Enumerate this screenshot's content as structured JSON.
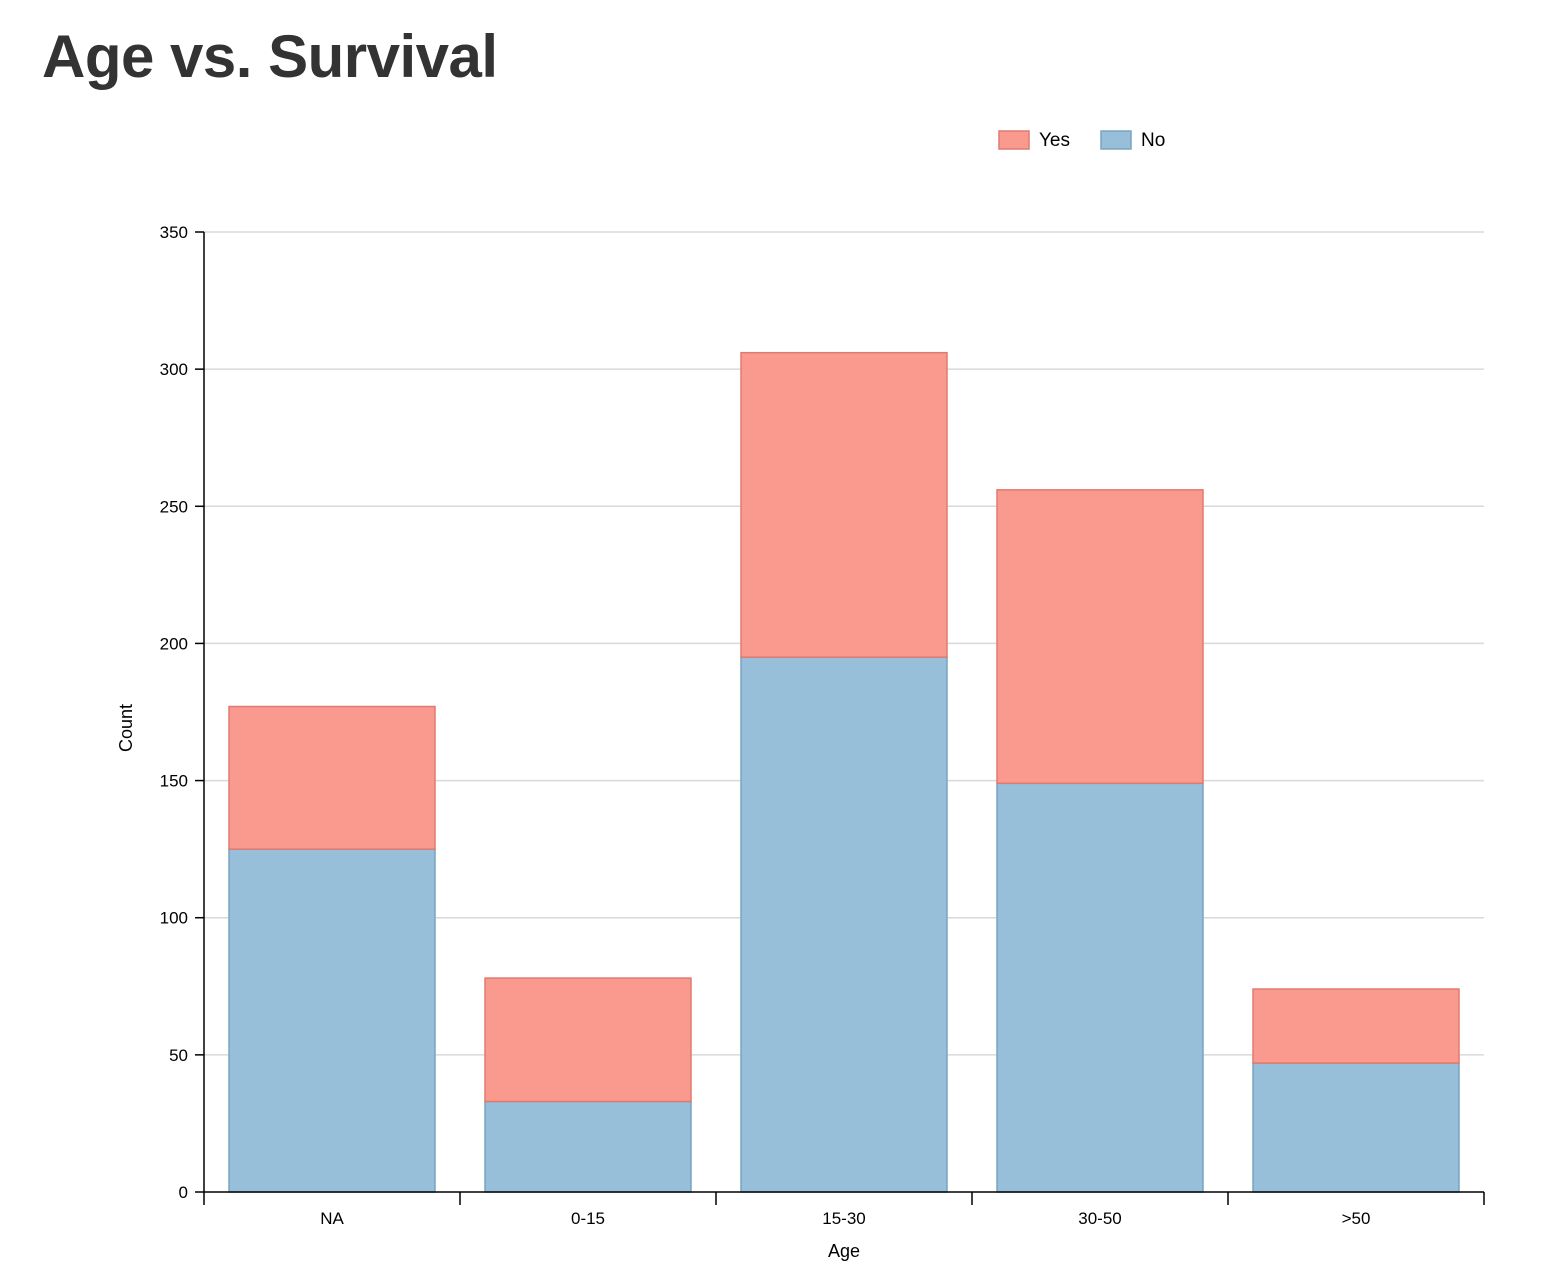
{
  "chart_data": {
    "type": "bar",
    "stacked": true,
    "title": "Age vs. Survival",
    "xlabel": "Age",
    "ylabel": "Count",
    "categories": [
      "NA",
      "0-15",
      "15-30",
      "30-50",
      ">50"
    ],
    "series": [
      {
        "name": "No",
        "values": [
          125,
          33,
          195,
          149,
          47
        ],
        "color": "#98bfda",
        "stroke": "#7aa3c0"
      },
      {
        "name": "Yes",
        "values": [
          52,
          45,
          111,
          107,
          27
        ],
        "color": "#fa9a8e",
        "stroke": "#e07a70"
      }
    ],
    "legend_order": [
      "Yes",
      "No"
    ],
    "ylim": [
      0,
      350
    ],
    "yticks": [
      0,
      50,
      100,
      150,
      200,
      250,
      300,
      350
    ],
    "grid": true,
    "legend_position": "top-center"
  }
}
